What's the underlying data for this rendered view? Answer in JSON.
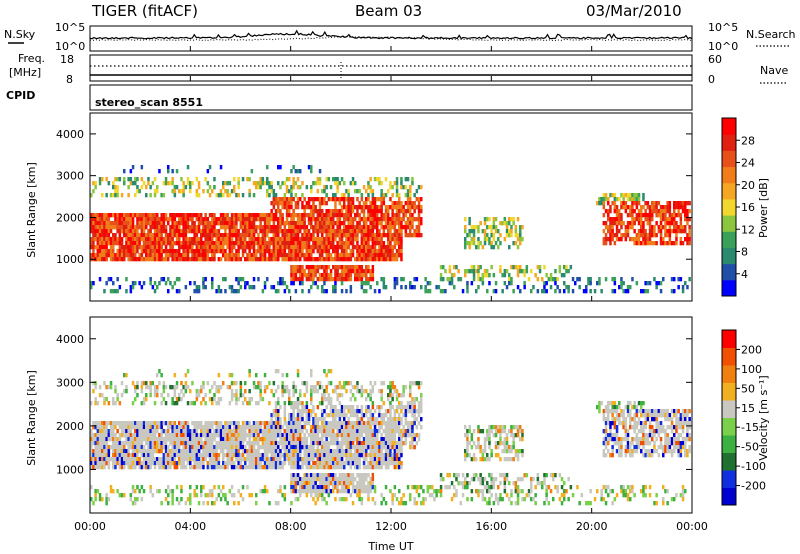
{
  "header": {
    "radar": "TIGER (fitACF)",
    "beam": "Beam 03",
    "date": "03/Mar/2010"
  },
  "left_labels": {
    "nsky": "N.Sky",
    "freq_line1": "Freq.",
    "freq_line2": "[MHz]",
    "cpid": "CPID"
  },
  "right_labels": {
    "nsearch": "N.Search",
    "nave": "Nave"
  },
  "cpid_text": "stereo_scan 8551",
  "colors": {
    "power_scale": [
      "#0000ff",
      "#1f4fa8",
      "#2a8a6e",
      "#3aa05a",
      "#8cc63f",
      "#f2d72e",
      "#f5a623",
      "#f07d1a",
      "#e8501a",
      "#e02010",
      "#ff0000"
    ],
    "velocity_scale": [
      "#0000d0",
      "#1030e0",
      "#207030",
      "#3cb040",
      "#7ad04a",
      "#c8c8c0",
      "#f0b020",
      "#f08010",
      "#f05000",
      "#ff0000"
    ]
  },
  "chart_data": [
    {
      "type": "line",
      "name": "noise",
      "ylabels_left": [
        "10^5",
        "10^0"
      ],
      "ylabels_right": [
        "10^5",
        "10^0"
      ]
    },
    {
      "type": "line",
      "name": "frequency",
      "ylabels_left": [
        "18",
        "8"
      ],
      "ylabels_right": [
        "60",
        "0"
      ]
    },
    {
      "type": "heatmap",
      "name": "power",
      "ylabel": "Slant Range [km]",
      "yticks": [
        "4000",
        "3000",
        "2000",
        "1000"
      ],
      "colorbar_title": "Power [dB]",
      "colorbar_ticks": [
        "28",
        "24",
        "20",
        "16",
        "12",
        "8",
        "4"
      ]
    },
    {
      "type": "heatmap",
      "name": "velocity",
      "ylabel": "Slant Range [km]",
      "yticks": [
        "4000",
        "3000",
        "2000",
        "1000"
      ],
      "colorbar_title": "Velocity [m s⁻¹]",
      "colorbar_ticks": [
        "200",
        "100",
        "50",
        "15",
        "-15",
        "-50",
        "-100",
        "-200"
      ],
      "xticks": [
        "00:00",
        "04:00",
        "08:00",
        "12:00",
        "16:00",
        "20:00",
        "00:00"
      ],
      "xlabel": "Time UT"
    }
  ]
}
